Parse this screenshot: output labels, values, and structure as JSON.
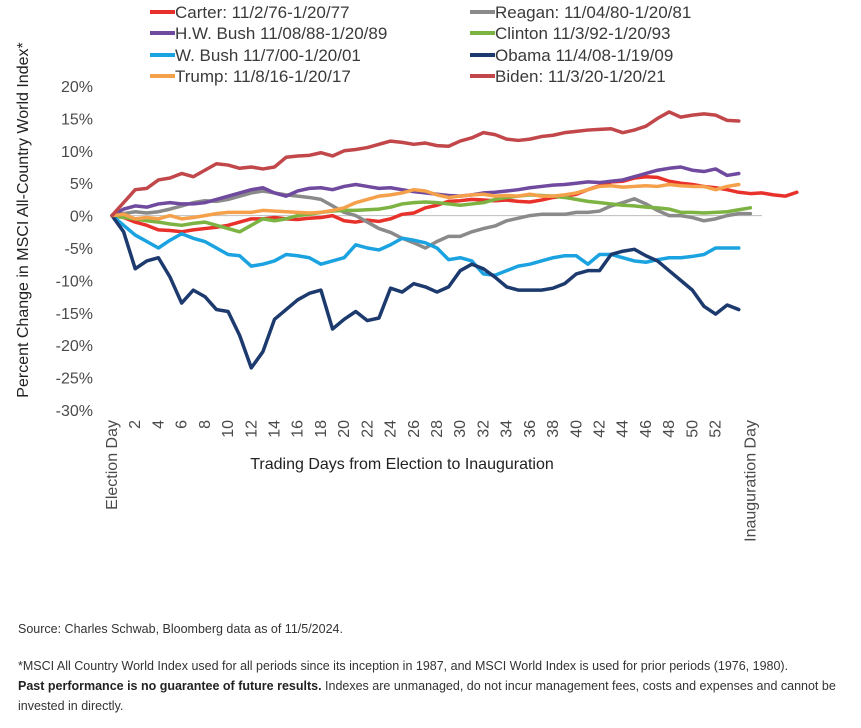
{
  "chart_data": {
    "type": "line",
    "ylabel": "Percent Change in MSCI All-Country World Index*",
    "xlabel": "Trading Days from Election to Inauguration",
    "ylim": [
      -30,
      20
    ],
    "yticks": [
      "20%",
      "15%",
      "10%",
      "5%",
      "0%",
      "-5%",
      "-10%",
      "-15%",
      "-20%",
      "-25%",
      "-30%"
    ],
    "ytick_values": [
      20,
      15,
      10,
      5,
      0,
      -5,
      -10,
      -15,
      -20,
      -25,
      -30
    ],
    "xlim": [
      0,
      56
    ],
    "xtick_labels": [
      "Election Day",
      "2",
      "4",
      "6",
      "8",
      "10",
      "12",
      "14",
      "16",
      "18",
      "20",
      "22",
      "24",
      "26",
      "28",
      "30",
      "32",
      "34",
      "36",
      "38",
      "40",
      "42",
      "44",
      "46",
      "48",
      "50",
      "52",
      "Inauguration Day"
    ],
    "xtick_values": [
      0,
      2,
      4,
      6,
      8,
      10,
      12,
      14,
      16,
      18,
      20,
      22,
      24,
      26,
      28,
      30,
      32,
      34,
      36,
      38,
      40,
      42,
      44,
      46,
      48,
      50,
      52,
      55
    ],
    "grid": false,
    "legend": "top",
    "series": [
      {
        "name": "Carter: 11/2/76-1/20/77",
        "color": "#e8312a",
        "values": [
          0,
          -0.3,
          -1,
          -1.5,
          -2.2,
          -2.3,
          -2.5,
          -2.2,
          -2,
          -1.8,
          -1.5,
          -1,
          -0.5,
          -0.5,
          -0.3,
          -0.5,
          -0.6,
          -0.4,
          -0.3,
          0,
          -0.8,
          -1,
          -0.7,
          -0.9,
          -0.5,
          0.2,
          0.4,
          1.2,
          1.6,
          2.2,
          2.3,
          2.5,
          2.4,
          2.3,
          2.4,
          2.2,
          2.1,
          2.4,
          2.8,
          3,
          3.3,
          4,
          4.6,
          5.2,
          5.3,
          5.8,
          6,
          5.9,
          5.3,
          5,
          4.8,
          4.5,
          4.3,
          4,
          3.6,
          3.4,
          3.5,
          3.2,
          3,
          3.6
        ]
      },
      {
        "name": "Reagan: 11/04/80-1/20/81",
        "color": "#8a8a8a",
        "values": [
          0,
          0.3,
          0.6,
          0.4,
          0.6,
          1,
          1.5,
          2,
          2.3,
          2.2,
          2.5,
          3,
          3.5,
          3.8,
          3.5,
          3.2,
          3,
          2.8,
          2.5,
          1.5,
          0.5,
          0,
          -1,
          -2,
          -2.6,
          -3.5,
          -4.2,
          -5,
          -4,
          -3.2,
          -3.2,
          -2.5,
          -2,
          -1.6,
          -0.8,
          -0.4,
          0,
          0.2,
          0.2,
          0.2,
          0.5,
          0.5,
          0.7,
          1.5,
          2,
          2.6,
          1.8,
          0.8,
          0,
          0,
          -0.3,
          -0.8,
          -0.5,
          0,
          0.3,
          0.3
        ]
      },
      {
        "name": "H.W. Bush 11/08/88-1/20/89",
        "color": "#6f4a9e",
        "values": [
          0,
          1,
          1.5,
          1.3,
          1.8,
          2,
          1.8,
          1.8,
          2,
          2.5,
          3,
          3.5,
          4,
          4.3,
          3.5,
          3,
          3.8,
          4.2,
          4.3,
          4,
          4.5,
          4.8,
          4.5,
          4.2,
          4.3,
          4,
          3.7,
          3.5,
          3.3,
          3.1,
          3,
          3.2,
          3.5,
          3.6,
          3.8,
          4,
          4.3,
          4.5,
          4.7,
          4.8,
          5,
          5.2,
          5.1,
          5.3,
          5.5,
          6,
          6.5,
          7,
          7.3,
          7.5,
          7,
          6.8,
          7.2,
          6.2,
          6.5
        ]
      },
      {
        "name": "Clinton 11/3/92-1/20/93",
        "color": "#7cb342",
        "values": [
          0,
          -0.3,
          -0.5,
          -0.8,
          -1,
          -1.3,
          -1.5,
          -1.2,
          -1,
          -1.5,
          -2,
          -2.5,
          -1.5,
          -0.5,
          -0.8,
          -0.5,
          0,
          0.2,
          0.5,
          0.7,
          0.8,
          0.8,
          0.9,
          1,
          1.3,
          1.8,
          2,
          2.1,
          2,
          1.8,
          1.6,
          1.8,
          2,
          2.5,
          2.8,
          3,
          3.2,
          3.1,
          3,
          2.8,
          2.5,
          2.2,
          2,
          1.8,
          1.6,
          1.5,
          1.3,
          1.2,
          1,
          0.5,
          0.5,
          0.4,
          0.5,
          0.6,
          0.9,
          1.2
        ]
      },
      {
        "name": "W. Bush 11/7/00-1/20/01",
        "color": "#1aa3e0",
        "values": [
          0,
          -1.5,
          -3,
          -4,
          -5,
          -3.8,
          -2.8,
          -3.5,
          -4,
          -5,
          -6,
          -6.2,
          -7.8,
          -7.5,
          -7,
          -6,
          -6.2,
          -6.5,
          -7.5,
          -7,
          -6.5,
          -4.5,
          -5,
          -5.3,
          -4.5,
          -3.5,
          -3.8,
          -4.2,
          -5,
          -6.8,
          -6.5,
          -7,
          -9,
          -9.2,
          -8.5,
          -7.8,
          -7.5,
          -7,
          -6.5,
          -6.2,
          -6.2,
          -7.5,
          -6,
          -6,
          -6.5,
          -7,
          -7.2,
          -6.8,
          -6.5,
          -6.5,
          -6.3,
          -6,
          -5,
          -5,
          -5
        ]
      },
      {
        "name": "Obama 11/4/08-1/19/09",
        "color": "#1d3a6e",
        "values": [
          0,
          -2.5,
          -8.2,
          -7,
          -6.5,
          -9.5,
          -13.5,
          -11.5,
          -12.5,
          -14.5,
          -14.8,
          -18.5,
          -23.5,
          -21,
          -16,
          -14.5,
          -13,
          -12,
          -11.5,
          -17.5,
          -16,
          -14.8,
          -16.2,
          -15.8,
          -11.2,
          -11.8,
          -10.5,
          -11,
          -11.8,
          -11,
          -8.5,
          -7.5,
          -8.2,
          -9.5,
          -11,
          -11.5,
          -11.5,
          -11.5,
          -11.2,
          -10.5,
          -9,
          -8.5,
          -8.5,
          -6,
          -5.5,
          -5.2,
          -6.2,
          -7,
          -8.5,
          -10,
          -11.5,
          -14,
          -15.2,
          -13.8,
          -14.5
        ]
      },
      {
        "name": "Trump: 11/8/16-1/20/17",
        "color": "#f5a04a",
        "values": [
          0,
          0.2,
          -0.5,
          -0.3,
          -0.5,
          0,
          -0.5,
          -0.3,
          0,
          0.3,
          0.5,
          0.5,
          0.5,
          0.8,
          0.7,
          0.6,
          0.5,
          0.4,
          0.5,
          0.8,
          1.2,
          2,
          2.5,
          3,
          3.2,
          3.5,
          4,
          3.8,
          3.2,
          2.8,
          3,
          3.2,
          3.3,
          3,
          3.1,
          3,
          3.3,
          3,
          3,
          3.2,
          3.5,
          4,
          4.5,
          4.6,
          4.4,
          4.5,
          4.6,
          4.5,
          4.8,
          4.6,
          4.5,
          4.5,
          4,
          4.5,
          4.8
        ]
      },
      {
        "name": "Biden: 11/3/20-1/20/21",
        "color": "#c1474a",
        "values": [
          0,
          2,
          4,
          4.2,
          5.5,
          5.8,
          6.5,
          6,
          7,
          8,
          7.8,
          7.3,
          7.5,
          7.2,
          7.5,
          9,
          9.2,
          9.3,
          9.7,
          9.2,
          10,
          10.2,
          10.5,
          11,
          11.5,
          11.3,
          11,
          11.2,
          10.8,
          10.7,
          11.5,
          12,
          12.8,
          12.5,
          11.8,
          11.6,
          11.8,
          12.2,
          12.4,
          12.8,
          13,
          13.2,
          13.3,
          13.4,
          12.8,
          13.2,
          13.8,
          15,
          16,
          15.2,
          15.5,
          15.7,
          15.5,
          14.7,
          14.6
        ]
      }
    ]
  },
  "footer": {
    "source": "Source: Charles Schwab, Bloomberg data as of 11/5/2024.",
    "note_prefix": "*MSCI All Country World Index used for all periods since its inception in 1987, and MSCI World Index is used for prior periods (1976, 1980).",
    "note_bold": "Past performance is no guarantee of future results.",
    "note_rest": " Indexes are unmanaged, do not incur management fees, costs and expenses and cannot be invested in directly."
  }
}
